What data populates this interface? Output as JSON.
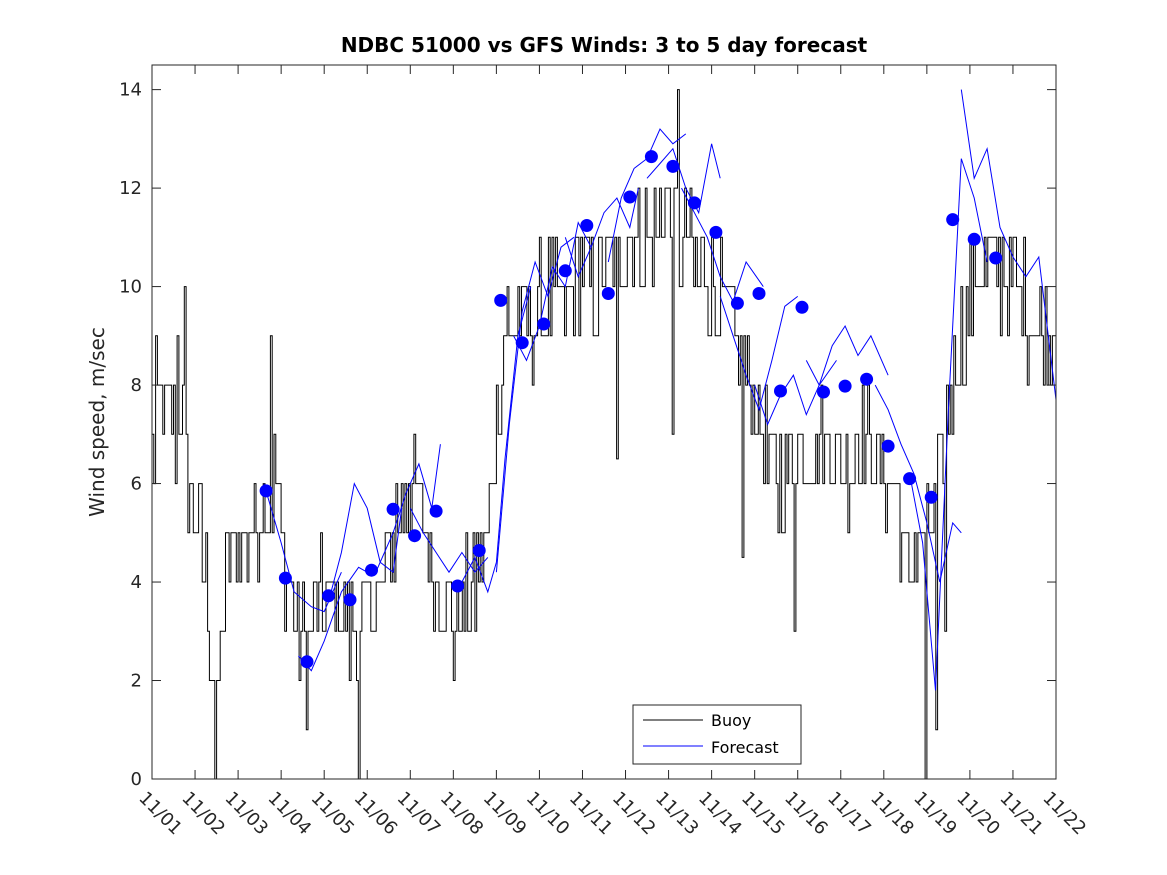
{
  "chart_data": {
    "type": "line",
    "title": "NDBC 51000 vs GFS Winds: 3 to 5 day forecast",
    "xlabel": "",
    "ylabel": "Wind speed, m/sec",
    "xlim": [
      0,
      21
    ],
    "ylim": [
      0,
      14.5
    ],
    "y_ticks": [
      0,
      2,
      4,
      6,
      8,
      10,
      12,
      14
    ],
    "x_tick_labels": [
      "11/01",
      "11/02",
      "11/03",
      "11/04",
      "11/05",
      "11/06",
      "11/07",
      "11/08",
      "11/09",
      "11/10",
      "11/11",
      "11/12",
      "11/13",
      "11/14",
      "11/15",
      "11/16",
      "11/17",
      "11/18",
      "11/19",
      "11/20",
      "11/21",
      "11/22"
    ],
    "legend": {
      "position": "bottom-center",
      "entries": [
        "Buoy",
        "Forecast"
      ]
    },
    "colors": {
      "buoy": "#000000",
      "forecast": "#0000ff",
      "axis": "#262626"
    },
    "buoy_anchors": [
      [
        0.0,
        6.5
      ],
      [
        0.1,
        7.0
      ],
      [
        0.3,
        7.5
      ],
      [
        0.5,
        7.0
      ],
      [
        0.7,
        7.5
      ],
      [
        0.8,
        6.5
      ],
      [
        1.0,
        5.5
      ],
      [
        1.2,
        4.5
      ],
      [
        1.4,
        2.5
      ],
      [
        1.5,
        1.0
      ],
      [
        1.6,
        3.0
      ],
      [
        1.8,
        4.5
      ],
      [
        2.0,
        4.5
      ],
      [
        2.2,
        5.0
      ],
      [
        2.5,
        5.5
      ],
      [
        2.8,
        6.0
      ],
      [
        3.0,
        5.0
      ],
      [
        3.2,
        3.5
      ],
      [
        3.4,
        3.0
      ],
      [
        3.6,
        2.5
      ],
      [
        3.8,
        3.5
      ],
      [
        4.0,
        3.5
      ],
      [
        4.3,
        3.5
      ],
      [
        4.6,
        3.0
      ],
      [
        4.8,
        2.5
      ],
      [
        5.0,
        3.5
      ],
      [
        5.3,
        4.0
      ],
      [
        5.6,
        5.0
      ],
      [
        5.9,
        6.0
      ],
      [
        6.2,
        5.5
      ],
      [
        6.5,
        4.5
      ],
      [
        6.8,
        3.5
      ],
      [
        7.0,
        3.0
      ],
      [
        7.2,
        3.5
      ],
      [
        7.5,
        4.0
      ],
      [
        7.8,
        5.0
      ],
      [
        8.0,
        7.5
      ],
      [
        8.2,
        9.0
      ],
      [
        8.5,
        9.5
      ],
      [
        8.8,
        9.5
      ],
      [
        9.0,
        9.5
      ],
      [
        9.3,
        10.0
      ],
      [
        9.6,
        9.5
      ],
      [
        10.0,
        10.5
      ],
      [
        10.3,
        10.0
      ],
      [
        10.6,
        10.5
      ],
      [
        11.0,
        11.0
      ],
      [
        11.3,
        11.0
      ],
      [
        11.6,
        11.0
      ],
      [
        12.0,
        11.5
      ],
      [
        12.3,
        11.0
      ],
      [
        12.6,
        10.5
      ],
      [
        12.9,
        10.0
      ],
      [
        13.2,
        9.5
      ],
      [
        13.5,
        9.0
      ],
      [
        13.8,
        8.0
      ],
      [
        14.0,
        7.5
      ],
      [
        14.3,
        6.5
      ],
      [
        14.6,
        6.0
      ],
      [
        15.0,
        6.5
      ],
      [
        15.3,
        6.5
      ],
      [
        15.6,
        7.0
      ],
      [
        15.9,
        6.5
      ],
      [
        16.2,
        6.5
      ],
      [
        16.5,
        7.0
      ],
      [
        16.8,
        6.5
      ],
      [
        17.0,
        6.0
      ],
      [
        17.3,
        6.0
      ],
      [
        17.5,
        4.0
      ],
      [
        17.7,
        4.5
      ],
      [
        18.0,
        5.0
      ],
      [
        18.3,
        6.0
      ],
      [
        18.5,
        7.5
      ],
      [
        18.8,
        9.0
      ],
      [
        19.0,
        10.0
      ],
      [
        19.3,
        10.5
      ],
      [
        19.6,
        10.5
      ],
      [
        20.0,
        10.0
      ],
      [
        20.4,
        9.5
      ],
      [
        20.7,
        9.0
      ],
      [
        21.0,
        9.0
      ]
    ],
    "buoy_spikes": [
      [
        0.1,
        9.0
      ],
      [
        0.6,
        9.0
      ],
      [
        0.75,
        10.0
      ],
      [
        1.45,
        0.0
      ],
      [
        2.75,
        9.0
      ],
      [
        4.8,
        0.0
      ],
      [
        12.2,
        14.0
      ],
      [
        12.1,
        7.0
      ],
      [
        13.7,
        4.5
      ],
      [
        14.9,
        3.0
      ],
      [
        17.95,
        0.0
      ],
      [
        18.2,
        1.0
      ],
      [
        18.4,
        3.0
      ],
      [
        10.8,
        6.5
      ]
    ],
    "forecast_runs": [
      [
        [
          2.6,
          6.0
        ],
        [
          3.0,
          4.8
        ],
        [
          3.3,
          3.8
        ],
        [
          3.7,
          3.5
        ],
        [
          4.0,
          3.4
        ],
        [
          4.4,
          4.2
        ]
      ],
      [
        [
          3.4,
          2.5
        ],
        [
          3.7,
          2.2
        ],
        [
          4.0,
          2.8
        ],
        [
          4.4,
          3.8
        ],
        [
          4.8,
          4.3
        ],
        [
          5.0,
          4.2
        ]
      ],
      [
        [
          4.1,
          3.6
        ],
        [
          4.4,
          4.6
        ],
        [
          4.7,
          6.0
        ],
        [
          5.0,
          5.5
        ],
        [
          5.3,
          4.4
        ],
        [
          5.6,
          4.2
        ],
        [
          5.8,
          5.5
        ]
      ],
      [
        [
          5.2,
          4.2
        ],
        [
          5.6,
          5.0
        ],
        [
          5.9,
          5.8
        ],
        [
          6.2,
          6.4
        ],
        [
          6.5,
          5.5
        ],
        [
          6.7,
          6.8
        ]
      ],
      [
        [
          6.0,
          5.5
        ],
        [
          6.3,
          5.0
        ],
        [
          6.6,
          4.6
        ],
        [
          6.9,
          4.2
        ],
        [
          7.2,
          4.6
        ],
        [
          7.5,
          4.2
        ],
        [
          7.8,
          4.5
        ]
      ],
      [
        [
          7.2,
          4.0
        ],
        [
          7.5,
          4.5
        ],
        [
          7.8,
          3.8
        ],
        [
          8.0,
          4.4
        ],
        [
          8.2,
          6.5
        ],
        [
          8.5,
          9.0
        ],
        [
          8.8,
          10.0
        ]
      ],
      [
        [
          8.0,
          4.2
        ],
        [
          8.3,
          7.2
        ],
        [
          8.6,
          9.5
        ],
        [
          8.9,
          10.5
        ],
        [
          9.2,
          9.8
        ],
        [
          9.5,
          10.8
        ],
        [
          9.8,
          11.0
        ]
      ],
      [
        [
          8.4,
          9.0
        ],
        [
          8.7,
          8.5
        ],
        [
          9.0,
          9.2
        ],
        [
          9.3,
          10.4
        ],
        [
          9.6,
          10.0
        ],
        [
          9.9,
          11.3
        ],
        [
          10.2,
          10.8
        ]
      ],
      [
        [
          9.6,
          11.0
        ],
        [
          9.9,
          10.2
        ],
        [
          10.2,
          10.8
        ],
        [
          10.5,
          11.5
        ],
        [
          10.8,
          11.8
        ],
        [
          11.1,
          11.2
        ],
        [
          11.3,
          12.0
        ]
      ],
      [
        [
          10.6,
          10.5
        ],
        [
          10.9,
          11.8
        ],
        [
          11.2,
          12.4
        ],
        [
          11.5,
          12.6
        ],
        [
          11.8,
          13.2
        ],
        [
          12.1,
          12.9
        ],
        [
          12.4,
          13.1
        ]
      ],
      [
        [
          11.5,
          12.2
        ],
        [
          11.8,
          12.5
        ],
        [
          12.1,
          12.8
        ],
        [
          12.4,
          12.0
        ],
        [
          12.7,
          11.5
        ],
        [
          13.0,
          12.9
        ],
        [
          13.2,
          12.2
        ]
      ],
      [
        [
          12.3,
          12.0
        ],
        [
          12.6,
          11.5
        ],
        [
          12.9,
          11.0
        ],
        [
          13.2,
          10.2
        ],
        [
          13.5,
          9.7
        ],
        [
          13.8,
          10.5
        ],
        [
          14.2,
          10.0
        ]
      ],
      [
        [
          13.2,
          9.8
        ],
        [
          13.5,
          9.0
        ],
        [
          13.8,
          8.2
        ],
        [
          14.1,
          7.5
        ],
        [
          14.4,
          8.5
        ],
        [
          14.7,
          9.6
        ],
        [
          15.0,
          9.8
        ]
      ],
      [
        [
          14.0,
          8.0
        ],
        [
          14.3,
          7.2
        ],
        [
          14.6,
          7.8
        ],
        [
          14.9,
          8.2
        ],
        [
          15.2,
          7.4
        ],
        [
          15.5,
          8.0
        ],
        [
          15.9,
          8.5
        ]
      ],
      [
        [
          15.2,
          8.5
        ],
        [
          15.5,
          8.0
        ],
        [
          15.8,
          8.8
        ],
        [
          16.1,
          9.2
        ],
        [
          16.4,
          8.6
        ],
        [
          16.7,
          9.0
        ],
        [
          17.1,
          8.2
        ]
      ],
      [
        [
          16.8,
          8.0
        ],
        [
          17.1,
          7.5
        ],
        [
          17.4,
          6.8
        ],
        [
          17.7,
          6.2
        ],
        [
          18.0,
          5.2
        ],
        [
          18.3,
          4.0
        ],
        [
          18.6,
          5.2
        ],
        [
          18.8,
          5.0
        ]
      ],
      [
        [
          17.6,
          6.2
        ],
        [
          17.9,
          4.8
        ],
        [
          18.2,
          1.8
        ],
        [
          18.5,
          7.5
        ],
        [
          18.8,
          12.6
        ],
        [
          19.1,
          11.8
        ],
        [
          19.4,
          10.5
        ]
      ],
      [
        [
          18.8,
          14.0
        ],
        [
          19.1,
          12.2
        ],
        [
          19.4,
          12.8
        ],
        [
          19.7,
          11.2
        ],
        [
          20.0,
          10.6
        ],
        [
          20.3,
          10.2
        ],
        [
          20.6,
          10.6
        ],
        [
          21.0,
          7.7
        ]
      ]
    ],
    "forecast_points": [
      [
        2.65,
        5.85
      ],
      [
        3.1,
        4.08
      ],
      [
        3.6,
        2.38
      ],
      [
        4.1,
        3.72
      ],
      [
        4.6,
        3.64
      ],
      [
        5.1,
        4.24
      ],
      [
        5.6,
        5.48
      ],
      [
        6.1,
        4.94
      ],
      [
        6.6,
        5.44
      ],
      [
        7.1,
        3.92
      ],
      [
        7.6,
        4.64
      ],
      [
        8.1,
        9.72
      ],
      [
        8.6,
        8.86
      ],
      [
        9.1,
        9.24
      ],
      [
        9.6,
        10.32
      ],
      [
        10.1,
        11.24
      ],
      [
        10.6,
        9.86
      ],
      [
        11.1,
        11.82
      ],
      [
        11.6,
        12.64
      ],
      [
        12.1,
        12.44
      ],
      [
        12.6,
        11.7
      ],
      [
        13.1,
        11.1
      ],
      [
        13.6,
        9.66
      ],
      [
        14.1,
        9.86
      ],
      [
        14.6,
        7.88
      ],
      [
        15.1,
        9.58
      ],
      [
        15.6,
        7.86
      ],
      [
        16.1,
        7.98
      ],
      [
        16.6,
        8.12
      ],
      [
        17.1,
        6.76
      ],
      [
        17.6,
        6.1
      ],
      [
        18.1,
        5.72
      ],
      [
        18.6,
        11.36
      ],
      [
        19.1,
        10.96
      ],
      [
        19.6,
        10.58
      ]
    ]
  }
}
